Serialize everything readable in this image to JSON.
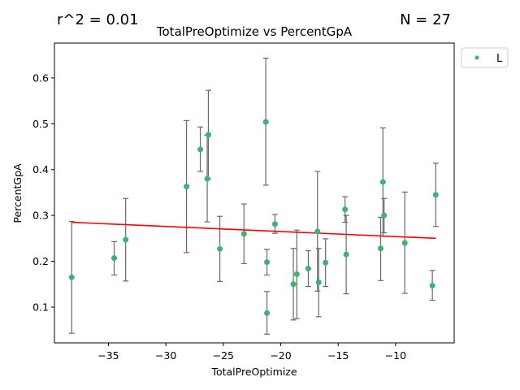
{
  "header": {
    "r2_text": "r^2 = 0.01",
    "n_text": "N = 27"
  },
  "chart_data": {
    "type": "scatter",
    "title": "TotalPreOptimize vs PercentGpA",
    "xlabel": "TotalPreOptimize",
    "ylabel": "PercentGpA",
    "xlim": [
      -39.7,
      -4.9
    ],
    "ylim": [
      0.022,
      0.676
    ],
    "xticks": [
      -35,
      -30,
      -25,
      -20,
      -15,
      -10
    ],
    "yticks": [
      0.1,
      0.2,
      0.3,
      0.4,
      0.5,
      0.6
    ],
    "grid": false,
    "legend": {
      "position": "outside-top-right",
      "entries": [
        "L"
      ]
    },
    "colors": {
      "points": "#3cb371",
      "fit_line": "#ff0000",
      "error_bars": "#696969"
    },
    "series": [
      {
        "name": "L",
        "points": [
          {
            "x": -38.2,
            "y": 0.165,
            "ylo": 0.043,
            "yhi": 0.287
          },
          {
            "x": -34.5,
            "y": 0.207,
            "ylo": 0.17,
            "yhi": 0.243
          },
          {
            "x": -33.5,
            "y": 0.247,
            "ylo": 0.157,
            "yhi": 0.337
          },
          {
            "x": -28.2,
            "y": 0.363,
            "ylo": 0.219,
            "yhi": 0.507
          },
          {
            "x": -27.0,
            "y": 0.444,
            "ylo": 0.396,
            "yhi": 0.493
          },
          {
            "x": -26.4,
            "y": 0.38,
            "ylo": 0.286,
            "yhi": 0.475
          },
          {
            "x": -26.3,
            "y": 0.476,
            "ylo": 0.38,
            "yhi": 0.573
          },
          {
            "x": -25.3,
            "y": 0.227,
            "ylo": 0.156,
            "yhi": 0.298
          },
          {
            "x": -23.2,
            "y": 0.26,
            "ylo": 0.195,
            "yhi": 0.325
          },
          {
            "x": -21.3,
            "y": 0.504,
            "ylo": 0.366,
            "yhi": 0.643
          },
          {
            "x": -21.2,
            "y": 0.198,
            "ylo": 0.17,
            "yhi": 0.226
          },
          {
            "x": -21.2,
            "y": 0.087,
            "ylo": 0.041,
            "yhi": 0.134
          },
          {
            "x": -20.5,
            "y": 0.281,
            "ylo": 0.261,
            "yhi": 0.302
          },
          {
            "x": -18.9,
            "y": 0.15,
            "ylo": 0.072,
            "yhi": 0.228
          },
          {
            "x": -18.6,
            "y": 0.172,
            "ylo": 0.075,
            "yhi": 0.268
          },
          {
            "x": -17.6,
            "y": 0.184,
            "ylo": 0.145,
            "yhi": 0.223
          },
          {
            "x": -16.8,
            "y": 0.265,
            "ylo": 0.135,
            "yhi": 0.396
          },
          {
            "x": -16.7,
            "y": 0.154,
            "ylo": 0.079,
            "yhi": 0.228
          },
          {
            "x": -16.1,
            "y": 0.197,
            "ylo": 0.145,
            "yhi": 0.249
          },
          {
            "x": -14.4,
            "y": 0.313,
            "ylo": 0.285,
            "yhi": 0.341
          },
          {
            "x": -14.3,
            "y": 0.215,
            "ylo": 0.129,
            "yhi": 0.3
          },
          {
            "x": -11.3,
            "y": 0.228,
            "ylo": 0.158,
            "yhi": 0.296
          },
          {
            "x": -11.1,
            "y": 0.373,
            "ylo": 0.255,
            "yhi": 0.491
          },
          {
            "x": -11.0,
            "y": 0.3,
            "ylo": 0.262,
            "yhi": 0.337
          },
          {
            "x": -9.2,
            "y": 0.24,
            "ylo": 0.13,
            "yhi": 0.351
          },
          {
            "x": -6.8,
            "y": 0.147,
            "ylo": 0.115,
            "yhi": 0.18
          },
          {
            "x": -6.5,
            "y": 0.345,
            "ylo": 0.276,
            "yhi": 0.414
          }
        ]
      }
    ],
    "fit_line": {
      "x": [
        -38.2,
        -6.5
      ],
      "y": [
        0.285,
        0.25
      ]
    }
  }
}
